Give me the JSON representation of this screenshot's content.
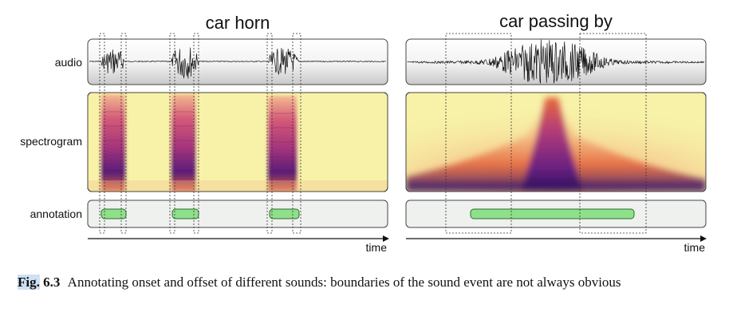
{
  "panels": {
    "left_title": "car horn",
    "right_title": "car passing by"
  },
  "row_labels": {
    "audio": "audio",
    "spectrogram": "spectrogram",
    "annotation": "annotation"
  },
  "axis": {
    "left_label": "time",
    "right_label": "time"
  },
  "colors": {
    "annotation_fill": "#8ee08a",
    "annotation_stroke": "#2e6b2e",
    "spectrogram_background": "#f7f2a8",
    "spectrogram_dark": "#3a1060",
    "spectrogram_mid": "#c0397a",
    "spectrogram_light": "#f2a25c",
    "waveform": "#111111"
  },
  "caption": {
    "label": "Fig.",
    "number": "6.3",
    "text": "Annotating onset and offset of different sounds: boundaries of the sound event are not always obvious"
  }
}
